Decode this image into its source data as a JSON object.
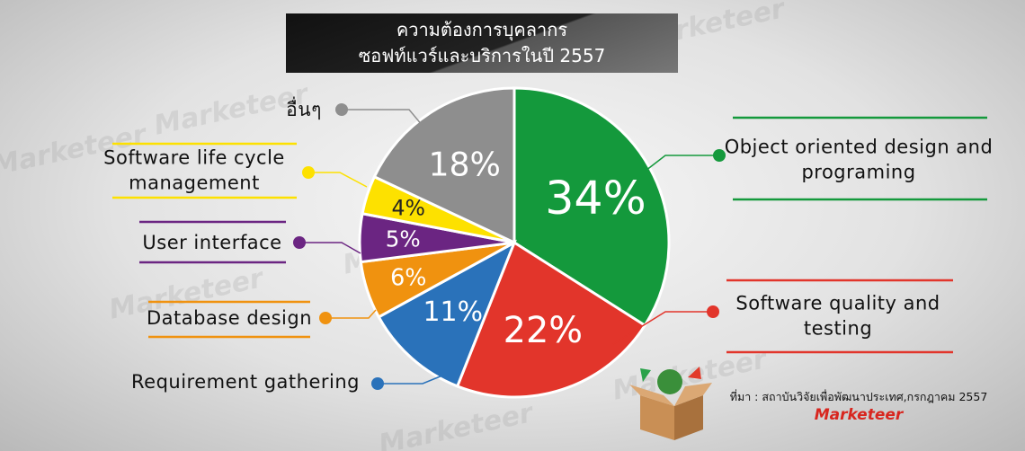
{
  "chart_data": {
    "type": "pie",
    "title": "ความต้องการบุคลากร",
    "subtitle": "ซอฟท์แวร์และบริการในปี 2557",
    "categories": [
      "Object oriented design and programing",
      "Software quality and testing",
      "Requirement gathering",
      "Database design",
      "User interface",
      "Software life cycle management",
      "อื่นๆ"
    ],
    "values": [
      34,
      22,
      11,
      6,
      5,
      4,
      18
    ],
    "value_labels": [
      "34%",
      "22%",
      "11%",
      "6%",
      "5%",
      "4%",
      "18%"
    ],
    "colors": [
      "#14993c",
      "#e2352b",
      "#2a72ba",
      "#f0920f",
      "#6b2582",
      "#fde100",
      "#8e8e8e"
    ],
    "source": "ที่มา : สถาบันวิจัยเพื่อพัฒนาประเทศ,กรกฎาคม 2557",
    "brand": "Marketeer",
    "watermark": "Marketeer"
  }
}
